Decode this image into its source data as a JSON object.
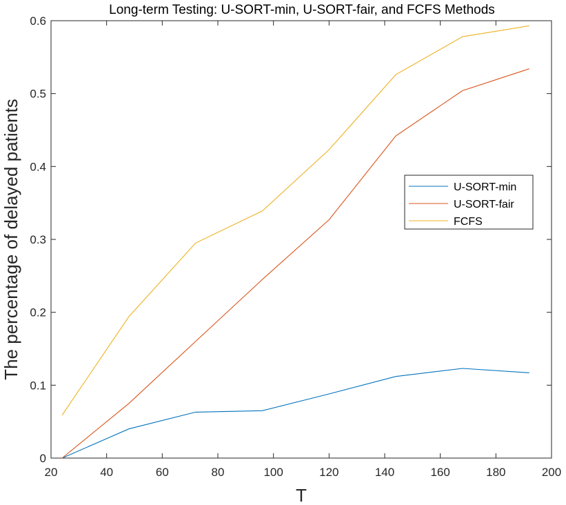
{
  "chart_data": {
    "type": "line",
    "title": "Long-term Testing: U-SORT-min, U-SORT-fair, and FCFS Methods",
    "xlabel": "T",
    "ylabel": "The percentage of delayed patients",
    "xlim": [
      20,
      200
    ],
    "ylim": [
      0,
      0.6
    ],
    "xticks": [
      20,
      40,
      60,
      80,
      100,
      120,
      140,
      160,
      180,
      200
    ],
    "yticks": [
      0,
      0.1,
      0.2,
      0.3,
      0.4,
      0.5,
      0.6
    ],
    "ytick_labels": [
      "0",
      "0.1",
      "0.2",
      "0.3",
      "0.4",
      "0.5",
      "0.6"
    ],
    "grid": false,
    "legend_position": "right",
    "x": [
      24,
      48,
      72,
      96,
      120,
      144,
      168,
      192
    ],
    "series": [
      {
        "name": "U-SORT-min",
        "color": "#0072BD",
        "values": [
          0.0,
          0.04,
          0.063,
          0.065,
          0.088,
          0.112,
          0.123,
          0.117
        ]
      },
      {
        "name": "U-SORT-fair",
        "color": "#D95319",
        "values": [
          0.0,
          0.075,
          0.16,
          0.245,
          0.327,
          0.442,
          0.504,
          0.534
        ]
      },
      {
        "name": "FCFS",
        "color": "#EDB120",
        "values": [
          0.059,
          0.194,
          0.295,
          0.339,
          0.423,
          0.526,
          0.578,
          0.593
        ]
      }
    ]
  }
}
